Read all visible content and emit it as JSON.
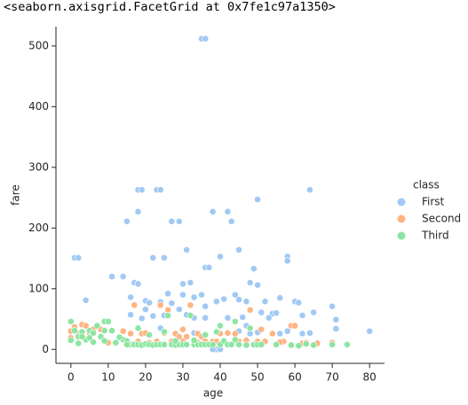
{
  "header": "<seaborn.axisgrid.FacetGrid at 0x7fe1c97a1350>",
  "chart_data": {
    "type": "scatter",
    "x_label": "age",
    "y_label": "fare",
    "legend_title": "class",
    "legend": "right",
    "xlim": [
      -4,
      84
    ],
    "ylim": [
      -23,
      532
    ],
    "xticks": [
      0,
      10,
      20,
      30,
      40,
      50,
      60,
      70,
      80
    ],
    "yticks": [
      0,
      100,
      200,
      300,
      400,
      500
    ],
    "series": [
      {
        "name": "First",
        "color": "#a1c9f4",
        "x": [
          35,
          36,
          18,
          19,
          23,
          24,
          64,
          18,
          38,
          42,
          43,
          27,
          29,
          15,
          50,
          1,
          2,
          22,
          25,
          36,
          37,
          40,
          45,
          31,
          58,
          58,
          49,
          11,
          14,
          4,
          17,
          18,
          30,
          32,
          48,
          44,
          50,
          26,
          16,
          20,
          21,
          24,
          27,
          30,
          33,
          35,
          39,
          41,
          45,
          47,
          52,
          56,
          60,
          61,
          70,
          71,
          65,
          54,
          53,
          42,
          36,
          31,
          22,
          19,
          24,
          28,
          33,
          40,
          45,
          48,
          50,
          56,
          58,
          62,
          64,
          80,
          39,
          40,
          38,
          71,
          47,
          36,
          25,
          29,
          33,
          46,
          51,
          62,
          55,
          20,
          16
        ],
        "values": [
          512,
          512,
          263,
          263,
          263,
          263,
          263,
          227,
          227,
          227,
          211,
          211,
          211,
          211,
          247,
          151,
          151,
          151,
          151,
          135,
          135,
          153,
          164,
          164,
          153,
          146,
          133,
          120,
          120,
          81,
          110,
          108,
          108,
          110,
          110,
          90,
          106,
          92,
          86,
          80,
          77,
          78,
          76,
          90,
          86,
          90,
          79,
          83,
          82,
          79,
          79,
          85,
          79,
          77,
          71,
          49,
          61,
          59,
          52,
          52,
          52,
          57,
          55,
          51,
          35,
          26,
          27,
          27,
          30,
          26,
          28,
          26,
          30,
          26,
          27,
          30,
          0,
          0,
          0,
          34,
          39,
          71,
          56,
          66,
          52,
          53,
          61,
          56,
          60,
          66,
          57
        ]
      },
      {
        "name": "Second",
        "color": "#ffb482",
        "x": [
          0,
          1,
          2,
          3,
          5,
          8,
          14,
          18,
          19,
          21,
          23,
          24,
          25,
          27,
          28,
          29,
          30,
          31,
          32,
          33,
          34,
          35,
          36,
          38,
          40,
          42,
          44,
          45,
          47,
          50,
          52,
          54,
          57,
          59,
          60,
          62,
          66,
          70,
          0,
          2,
          4,
          6,
          10,
          16,
          17,
          20,
          26,
          30,
          34,
          39,
          48,
          51,
          56,
          63
        ],
        "values": [
          30,
          37,
          26,
          41,
          27,
          33,
          30,
          13,
          26,
          11,
          13,
          73,
          27,
          13,
          26,
          21,
          13,
          21,
          73,
          13,
          26,
          21,
          13,
          13,
          26,
          27,
          26,
          13,
          15,
          13,
          13,
          26,
          13,
          39,
          39,
          10,
          10,
          11,
          19,
          23,
          39,
          33,
          11,
          26,
          73,
          27,
          65,
          33,
          11,
          13,
          65,
          33,
          12,
          11
        ]
      },
      {
        "name": "Third",
        "color": "#8de5a1",
        "x": [
          0,
          1,
          2,
          3,
          4,
          5,
          6,
          7,
          8,
          9,
          10,
          11,
          12,
          14,
          15,
          16,
          17,
          18,
          19,
          20,
          21,
          22,
          23,
          24,
          25,
          26,
          27,
          28,
          29,
          30,
          31,
          32,
          33,
          34,
          35,
          36,
          37,
          38,
          39,
          40,
          41,
          42,
          43,
          44,
          45,
          47,
          48,
          49,
          50,
          51,
          55,
          59,
          61,
          63,
          65,
          70,
          74,
          3,
          5,
          9,
          13,
          15,
          18,
          21,
          25,
          28,
          33,
          36,
          40,
          44,
          9,
          2,
          0,
          6
        ],
        "values": [
          46,
          31,
          21,
          29,
          16,
          31,
          27,
          39,
          21,
          46,
          46,
          31,
          11,
          16,
          14,
          8,
          8,
          8,
          7,
          9,
          8,
          7,
          8,
          8,
          8,
          56,
          8,
          7,
          8,
          8,
          8,
          56,
          8,
          8,
          8,
          8,
          8,
          8,
          29,
          8,
          14,
          8,
          8,
          16,
          8,
          7,
          35,
          8,
          8,
          8,
          8,
          7,
          6,
          9,
          7,
          8,
          8,
          21,
          19,
          31,
          20,
          8,
          35,
          24,
          29,
          14,
          15,
          24,
          39,
          46,
          14,
          10,
          15,
          12
        ]
      }
    ]
  }
}
